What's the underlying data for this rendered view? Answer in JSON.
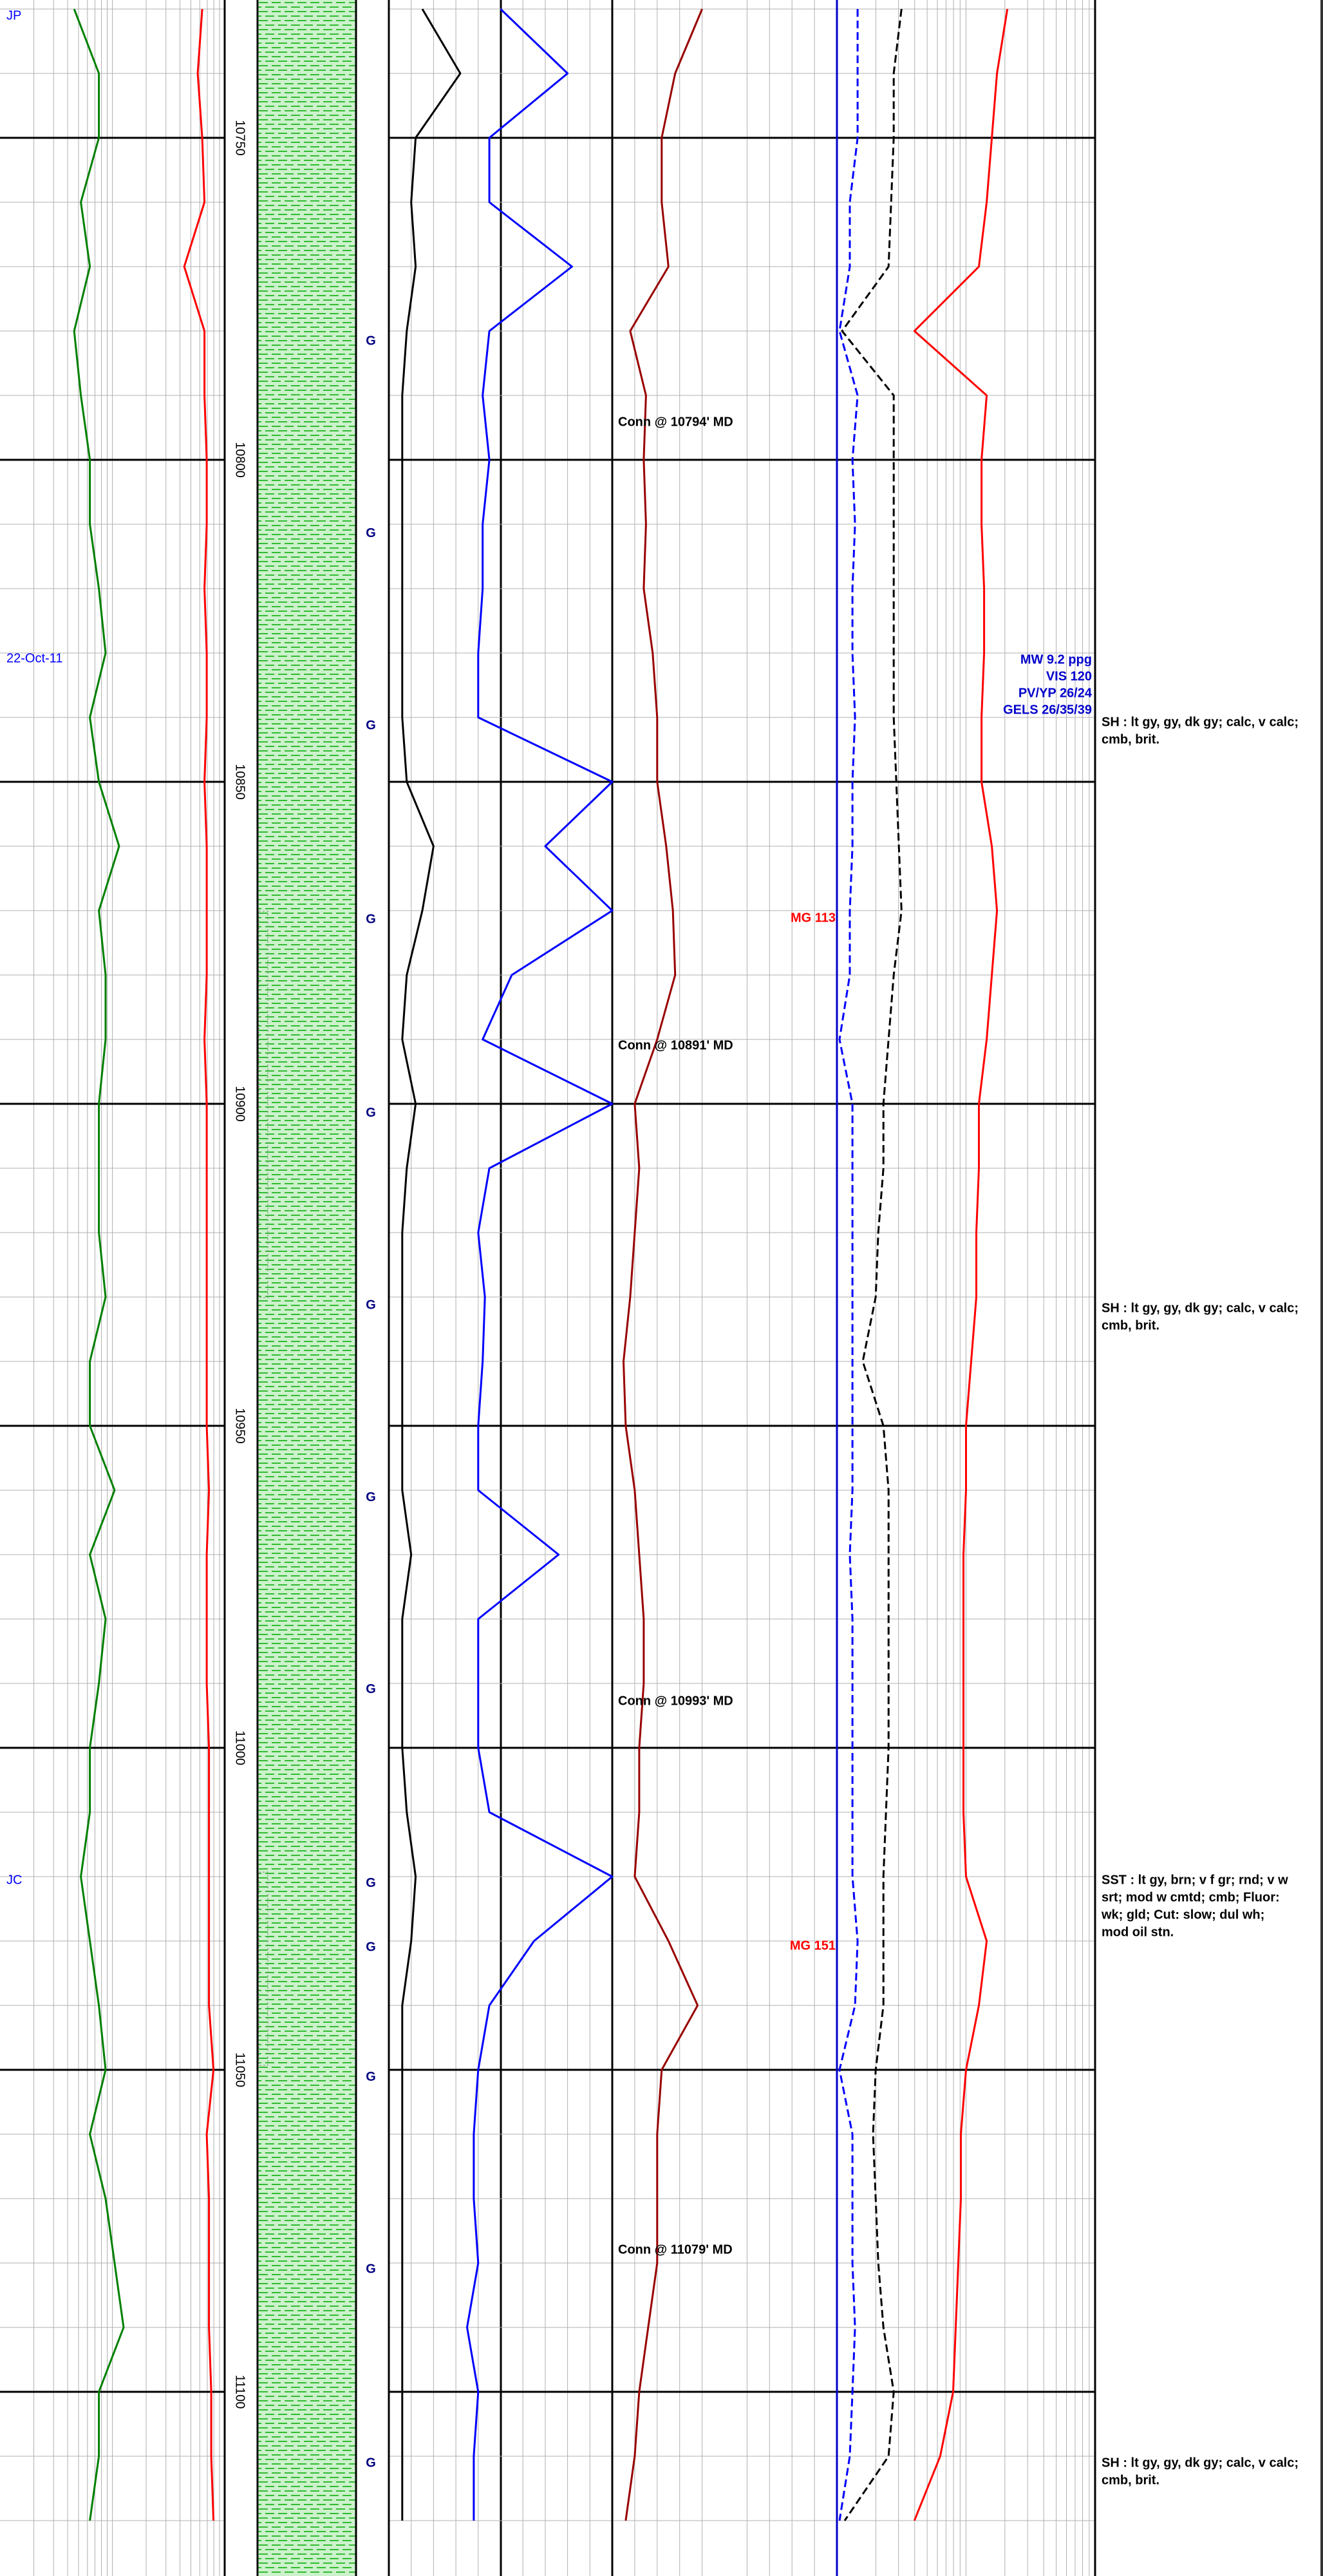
{
  "chart_data": {
    "type": "log",
    "ylim": [
      10728.6,
      11128.6
    ],
    "yticks": [
      10750,
      10800,
      10850,
      10900,
      10950,
      11000,
      11050,
      11100
    ],
    "depths": [
      10730,
      10740,
      10750,
      10760,
      10770,
      10780,
      10790,
      10800,
      10810,
      10820,
      10830,
      10840,
      10850,
      10860,
      10870,
      10880,
      10890,
      10900,
      10910,
      10920,
      10930,
      10940,
      10950,
      10960,
      10970,
      10980,
      10990,
      11000,
      11010,
      11020,
      11030,
      11040,
      11050,
      11060,
      11070,
      11080,
      11090,
      11100,
      11110,
      11120
    ],
    "grid": true,
    "tracks": [
      {
        "xlim": [
          0,
          100
        ],
        "scale": "log",
        "series": [
          {
            "color": "#008000",
            "dash": false,
            "values": [
              33,
              44,
              44,
              36,
              40,
              33,
              36,
              40,
              40,
              44,
              47,
              40,
              44,
              53,
              44,
              47,
              47,
              44,
              44,
              44,
              47,
              40,
              40,
              51,
              40,
              47,
              44,
              40,
              40,
              36,
              40,
              44,
              47,
              40,
              47,
              51,
              55,
              44,
              44,
              40
            ]
          },
          {
            "color": "#ff0000",
            "dash": false,
            "values": [
              90,
              88,
              90,
              91,
              82,
              91,
              91,
              92,
              92,
              91,
              92,
              92,
              91,
              92,
              92,
              92,
              91,
              92,
              92,
              92,
              92,
              92,
              92,
              93,
              92,
              92,
              92,
              93,
              93,
              93,
              93,
              93,
              95,
              92,
              93,
              93,
              93,
              94,
              94,
              95
            ]
          }
        ]
      },
      {
        "xlim": [
          0,
          100
        ],
        "scale": "linear",
        "series": [
          {
            "color": "#000000",
            "dash": false,
            "values": [
              15,
              32,
              12,
              10,
              12,
              8,
              6,
              6,
              6,
              6,
              6,
              6,
              8,
              20,
              15,
              8,
              6,
              12,
              8,
              6,
              6,
              6,
              6,
              6,
              10,
              6,
              6,
              6,
              8,
              12,
              10,
              6,
              6,
              6,
              6,
              6,
              6,
              6,
              6,
              6
            ]
          },
          {
            "color": "#0000ff",
            "dash": false,
            "values": [
              50,
              80,
              45,
              45,
              82,
              45,
              42,
              45,
              42,
              42,
              40,
              40,
              100,
              70,
              100,
              55,
              42,
              100,
              45,
              40,
              43,
              42,
              40,
              40,
              76,
              40,
              40,
              40,
              45,
              100,
              65,
              45,
              40,
              38,
              38,
              40,
              35,
              40,
              38,
              38
            ]
          }
        ]
      },
      {
        "xlim": [
          0,
          100
        ],
        "scale": "linear",
        "series": [
          {
            "color": "#990000",
            "dash": false,
            "values": [
              40,
              28,
              22,
              22,
              25,
              8,
              15,
              14,
              15,
              14,
              18,
              20,
              20,
              24,
              27,
              28,
              20,
              10,
              12,
              10,
              8,
              5,
              6,
              10,
              12,
              14,
              14,
              12,
              12,
              10,
              25,
              38,
              22,
              20,
              20,
              20,
              16,
              12,
              10,
              6
            ]
          }
        ]
      },
      {
        "xlim": [
          0,
          100
        ],
        "scale": "log",
        "series": [
          {
            "color": "#0000ff",
            "dash": true,
            "values": [
              8,
              8,
              8,
              5,
              5,
              1,
              8,
              6,
              7,
              6,
              6,
              7,
              6,
              6,
              5,
              5,
              1,
              6,
              6,
              6,
              6,
              6,
              6,
              6,
              5,
              6,
              6,
              6,
              6,
              6,
              8,
              7,
              1,
              6,
              6,
              6,
              7,
              6,
              5,
              1
            ]
          },
          {
            "color": "#000000",
            "dash": true,
            "values": [
              25,
              22,
              22,
              21,
              20,
              2,
              22,
              22,
              22,
              22,
              22,
              22,
              23,
              24,
              25,
              22,
              20,
              18,
              18,
              16,
              15,
              10,
              18,
              20,
              20,
              20,
              20,
              20,
              19,
              18,
              18,
              18,
              15,
              14,
              15,
              16,
              18,
              22,
              20,
              3
            ]
          },
          {
            "color": "#ff0000",
            "dash": false,
            "values": [
              66,
              62,
              60,
              58,
              55,
              30,
              58,
              56,
              56,
              57,
              57,
              56,
              56,
              60,
              62,
              60,
              58,
              55,
              55,
              54,
              54,
              52,
              50,
              50,
              49,
              49,
              49,
              49,
              49,
              50,
              58,
              55,
              50,
              48,
              48,
              47,
              46,
              45,
              40,
              30
            ]
          }
        ]
      }
    ],
    "annotations": [
      {
        "text": "JP",
        "color": "#0000ff"
      },
      {
        "text": "22-Oct-11",
        "color": "#0000ff"
      },
      {
        "text": "JC",
        "color": "#0000ff"
      },
      {
        "text": "Conn @ 10794' MD",
        "color": "#000000"
      },
      {
        "text": "Conn @ 10891' MD",
        "color": "#000000"
      },
      {
        "text": "Conn @ 10993' MD",
        "color": "#000000"
      },
      {
        "text": "Conn @ 11079' MD",
        "color": "#000000"
      },
      {
        "text": "MG 113",
        "color": "#ff0000"
      },
      {
        "text": "MG 151",
        "color": "#ff0000"
      }
    ],
    "gas_markers": [
      "G",
      "G",
      "G",
      "G",
      "G",
      "G",
      "G",
      "G",
      "G",
      "G",
      "G",
      "G",
      "G"
    ],
    "mud_properties": [
      "MW 9.2 ppg",
      "VIS 120",
      "PV/YP 26/24",
      "GELS 26/35/39"
    ],
    "descriptions": [
      [
        "SH : lt gy, gy, dk gy;  calc, v calc;",
        "cmb, brit."
      ],
      [
        "SH : lt gy, gy, dk gy;  calc, v calc;",
        "cmb, brit."
      ],
      [
        "SST : lt gy, brn;  v f gr;  rnd;  v w",
        "srt;  mod w cmtd;  cmb;  Fluor:",
        "wk;  gld;  Cut: slow;  dul wh;",
        "mod oil stn."
      ],
      [
        "SH : lt gy, gy, dk gy;  calc, v calc;",
        "cmb, brit."
      ]
    ]
  }
}
